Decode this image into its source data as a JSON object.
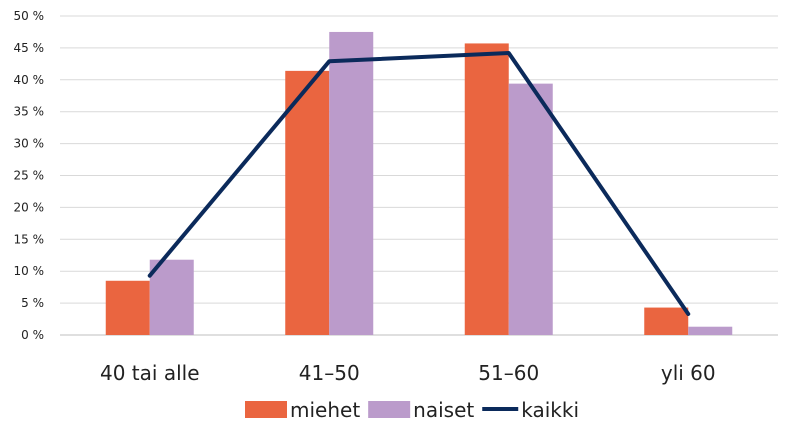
{
  "chart_data": {
    "type": "bar",
    "categories": [
      "40 tai alle",
      "41–50",
      "51–60",
      "yli 60"
    ],
    "series": [
      {
        "name": "miehet",
        "kind": "bar",
        "color": "#ea6540",
        "values": [
          8.5,
          41.4,
          45.7,
          4.3
        ]
      },
      {
        "name": "naiset",
        "kind": "bar",
        "color": "#bb9bcb",
        "values": [
          11.8,
          47.5,
          39.4,
          1.3
        ]
      },
      {
        "name": "kaikki",
        "kind": "line",
        "color": "#0b2a5b",
        "values": [
          9.3,
          42.9,
          44.2,
          3.3
        ]
      }
    ],
    "y_ticks": [
      "0 %",
      "5 %",
      "10 %",
      "15 %",
      "20 %",
      "25 %",
      "30 %",
      "35 %",
      "40 %",
      "45 %",
      "50 %"
    ],
    "ylim": [
      0,
      50
    ],
    "grid": true,
    "legend_position": "bottom",
    "title": "",
    "xlabel": "",
    "ylabel": ""
  }
}
